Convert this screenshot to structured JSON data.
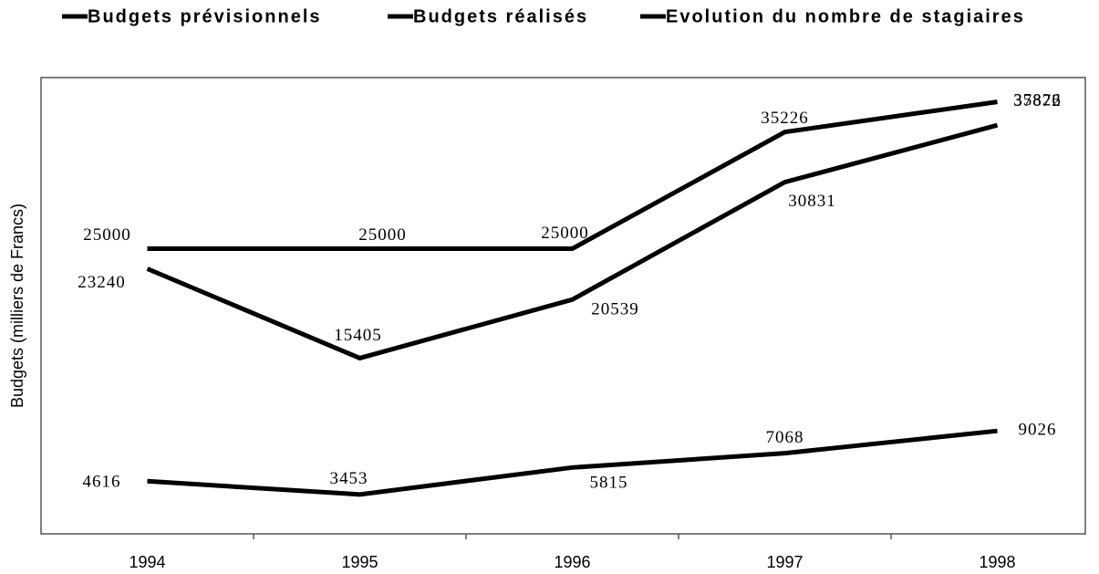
{
  "chart_data": {
    "type": "line",
    "y_label": "Budgets (milliers de Francs)",
    "categories": [
      "1994",
      "1995",
      "1996",
      "1997",
      "1998"
    ],
    "series": [
      {
        "name": "Budgets prévisionnels",
        "color": "#000000",
        "values": [
          25000,
          25000,
          25000,
          35226,
          37872
        ]
      },
      {
        "name": "Budgets réalisés",
        "color": "#000000",
        "values": [
          23240,
          15405,
          20539,
          30831,
          35826
        ]
      },
      {
        "name": "Evolution du nombre de stagiaires",
        "color": "#000000",
        "values": [
          4616,
          3453,
          5815,
          7068,
          9026
        ]
      }
    ],
    "ylim": [
      0,
      40000
    ],
    "grid": false
  }
}
